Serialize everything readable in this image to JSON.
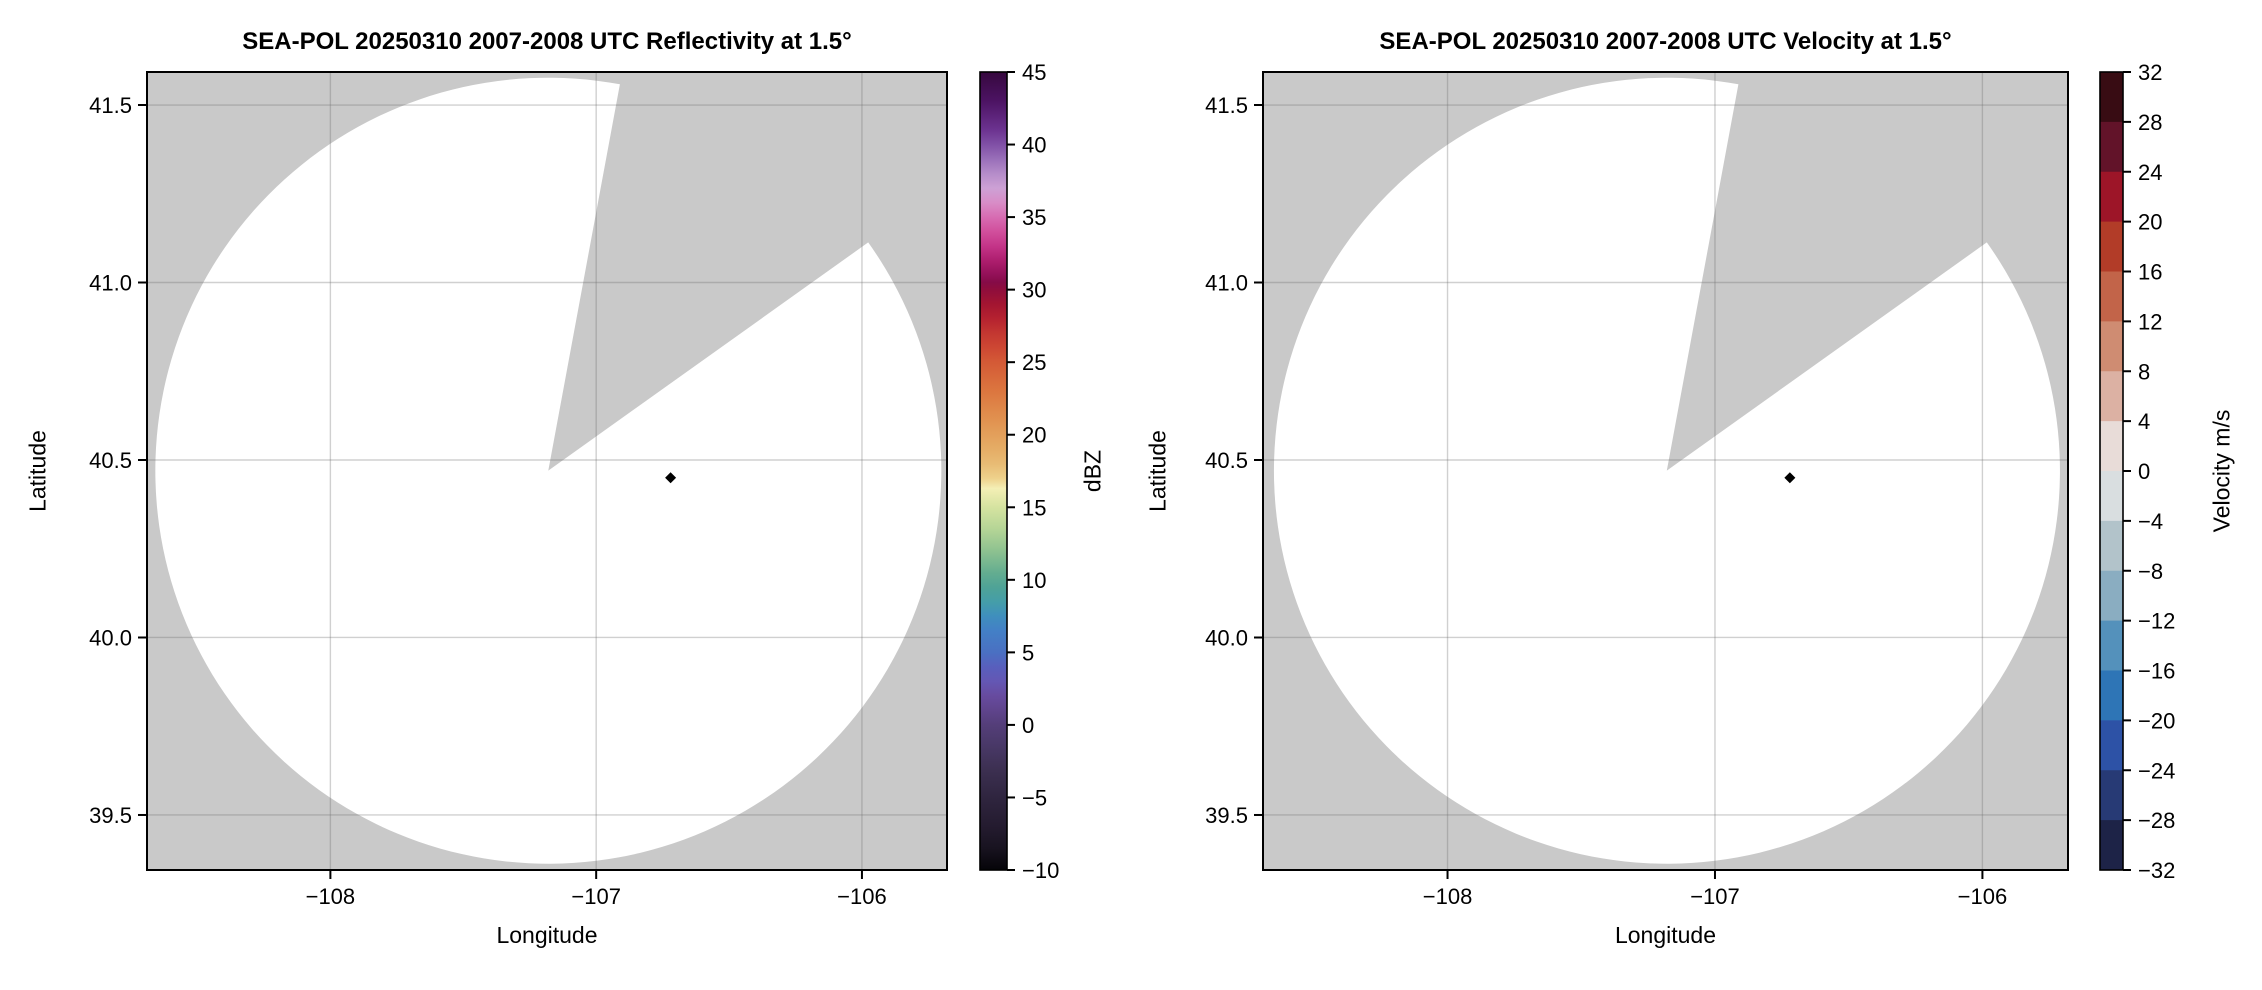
{
  "figure": {
    "background": "#ffffff"
  },
  "colors": {
    "no_data_gray": "#c9c9c9",
    "scanned_area_white": "#ffffff",
    "grid_line": "rgba(110,110,110,0.32)",
    "axes_frame": "#000000",
    "marker_black": "#000000"
  },
  "chart_data": [
    {
      "type": "radar-ppi",
      "title": "SEA-POL 20250310 2007-2008 UTC Reflectivity at 1.5°",
      "xlabel": "Longitude",
      "ylabel": "Latitude",
      "xlim": [
        -108.69,
        -105.68
      ],
      "ylim": [
        39.345,
        41.593
      ],
      "grid": true,
      "xticks": [
        {
          "v": -108,
          "label": "−108"
        },
        {
          "v": -107,
          "label": "−107"
        },
        {
          "v": -106,
          "label": "−106"
        }
      ],
      "yticks": [
        {
          "v": 41.5,
          "label": "41.5"
        },
        {
          "v": 41.0,
          "label": "41.0"
        },
        {
          "v": 40.5,
          "label": "40.5"
        },
        {
          "v": 40.0,
          "label": "40.0"
        },
        {
          "v": 39.5,
          "label": "39.5"
        }
      ],
      "radar_center": {
        "lon": -107.18,
        "lat": 40.47
      },
      "scan_radius_deg_lat": 1.107,
      "missing_sector_azimuth_deg": {
        "from": 10.5,
        "to": 54.5
      },
      "marker": {
        "lon": -106.72,
        "lat": 40.45,
        "shape": "diamond",
        "color": "#000000"
      },
      "colorbar": {
        "label": "dBZ",
        "style": "continuous",
        "min": -10,
        "max": 45,
        "ticks": [
          {
            "v": 45,
            "label": "45"
          },
          {
            "v": 40,
            "label": "40"
          },
          {
            "v": 35,
            "label": "35"
          },
          {
            "v": 30,
            "label": "30"
          },
          {
            "v": 25,
            "label": "25"
          },
          {
            "v": 20,
            "label": "20"
          },
          {
            "v": 15,
            "label": "15"
          },
          {
            "v": 10,
            "label": "10"
          },
          {
            "v": 5,
            "label": "5"
          },
          {
            "v": 0,
            "label": "0"
          },
          {
            "v": -5,
            "label": "−5"
          },
          {
            "v": -10,
            "label": "−10"
          }
        ],
        "gradient_stops": [
          {
            "v": 45,
            "color": "#36083e"
          },
          {
            "v": 43,
            "color": "#4c1363"
          },
          {
            "v": 41,
            "color": "#6c3390"
          },
          {
            "v": 40,
            "color": "#8050a6"
          },
          {
            "v": 39,
            "color": "#996fb9"
          },
          {
            "v": 38,
            "color": "#b58cc9"
          },
          {
            "v": 37,
            "color": "#cda1d5"
          },
          {
            "v": 36,
            "color": "#d88dc7"
          },
          {
            "v": 35,
            "color": "#d76cb2"
          },
          {
            "v": 34,
            "color": "#d14f9c"
          },
          {
            "v": 33,
            "color": "#c43488"
          },
          {
            "v": 32,
            "color": "#ad1e6e"
          },
          {
            "v": 31,
            "color": "#921057"
          },
          {
            "v": 30.5,
            "color": "#850b47"
          },
          {
            "v": 30,
            "color": "#8f0d3c"
          },
          {
            "v": 29,
            "color": "#a31531"
          },
          {
            "v": 28,
            "color": "#b52230"
          },
          {
            "v": 27,
            "color": "#c33731"
          },
          {
            "v": 26,
            "color": "#cd4733"
          },
          {
            "v": 25,
            "color": "#d45a36"
          },
          {
            "v": 23,
            "color": "#dc763f"
          },
          {
            "v": 21,
            "color": "#e19250"
          },
          {
            "v": 19,
            "color": "#e5ad66"
          },
          {
            "v": 18,
            "color": "#e8bb74"
          },
          {
            "v": 17,
            "color": "#eed18b"
          },
          {
            "v": 16.3,
            "color": "#f4efb5"
          },
          {
            "v": 15,
            "color": "#d5e3a0"
          },
          {
            "v": 13.5,
            "color": "#b5d596"
          },
          {
            "v": 12,
            "color": "#8ec290"
          },
          {
            "v": 10.5,
            "color": "#64ad90"
          },
          {
            "v": 9.5,
            "color": "#4fa396"
          },
          {
            "v": 8.5,
            "color": "#459ea8"
          },
          {
            "v": 7.5,
            "color": "#3f8fbd"
          },
          {
            "v": 6.5,
            "color": "#4380c6"
          },
          {
            "v": 5,
            "color": "#4a70c2"
          },
          {
            "v": 4,
            "color": "#585fbd"
          },
          {
            "v": 3,
            "color": "#6457b4"
          },
          {
            "v": 2,
            "color": "#674b9f"
          },
          {
            "v": 1,
            "color": "#5f448c"
          },
          {
            "v": 0,
            "color": "#543e79"
          },
          {
            "v": -1.5,
            "color": "#483866"
          },
          {
            "v": -3,
            "color": "#3d3052"
          },
          {
            "v": -5,
            "color": "#2f253f"
          },
          {
            "v": -7,
            "color": "#241b2f"
          },
          {
            "v": -8.5,
            "color": "#181320"
          },
          {
            "v": -10,
            "color": "#050408"
          }
        ]
      }
    },
    {
      "type": "radar-ppi",
      "title": "SEA-POL 20250310 2007-2008 UTC Velocity at 1.5°",
      "xlabel": "Longitude",
      "ylabel": "Latitude",
      "xlim": [
        -108.69,
        -105.68
      ],
      "ylim": [
        39.345,
        41.593
      ],
      "grid": true,
      "xticks": [
        {
          "v": -108,
          "label": "−108"
        },
        {
          "v": -107,
          "label": "−107"
        },
        {
          "v": -106,
          "label": "−106"
        }
      ],
      "yticks": [
        {
          "v": 41.5,
          "label": "41.5"
        },
        {
          "v": 41.0,
          "label": "41.0"
        },
        {
          "v": 40.5,
          "label": "40.5"
        },
        {
          "v": 40.0,
          "label": "40.0"
        },
        {
          "v": 39.5,
          "label": "39.5"
        }
      ],
      "radar_center": {
        "lon": -107.18,
        "lat": 40.47
      },
      "scan_radius_deg_lat": 1.107,
      "missing_sector_azimuth_deg": {
        "from": 10.5,
        "to": 54.5
      },
      "marker": {
        "lon": -106.72,
        "lat": 40.45,
        "shape": "diamond",
        "color": "#000000"
      },
      "colorbar": {
        "label": "Velocity m/s",
        "style": "discrete",
        "min": -32,
        "max": 32,
        "ticks": [
          {
            "v": 32,
            "label": "32"
          },
          {
            "v": 28,
            "label": "28"
          },
          {
            "v": 24,
            "label": "24"
          },
          {
            "v": 20,
            "label": "20"
          },
          {
            "v": 16,
            "label": "16"
          },
          {
            "v": 12,
            "label": "12"
          },
          {
            "v": 8,
            "label": "8"
          },
          {
            "v": 4,
            "label": "4"
          },
          {
            "v": 0,
            "label": "0"
          },
          {
            "v": -4,
            "label": "−4"
          },
          {
            "v": -8,
            "label": "−8"
          },
          {
            "v": -12,
            "label": "−12"
          },
          {
            "v": -16,
            "label": "−16"
          },
          {
            "v": -20,
            "label": "−20"
          },
          {
            "v": -24,
            "label": "−24"
          },
          {
            "v": -28,
            "label": "−28"
          },
          {
            "v": -32,
            "label": "−32"
          }
        ],
        "bands": [
          {
            "from": 28,
            "to": 32,
            "color": "#380c13"
          },
          {
            "from": 24,
            "to": 28,
            "color": "#621329"
          },
          {
            "from": 20,
            "to": 24,
            "color": "#9d1528"
          },
          {
            "from": 16,
            "to": 20,
            "color": "#b23c28"
          },
          {
            "from": 12,
            "to": 16,
            "color": "#c26449"
          },
          {
            "from": 8,
            "to": 12,
            "color": "#cf8c72"
          },
          {
            "from": 4,
            "to": 8,
            "color": "#dcb1a3"
          },
          {
            "from": 0,
            "to": 4,
            "color": "#e8dcd8"
          },
          {
            "from": -4,
            "to": 0,
            "color": "#d9dee0"
          },
          {
            "from": -8,
            "to": -4,
            "color": "#b2c3ca"
          },
          {
            "from": -12,
            "to": -8,
            "color": "#8aadc1"
          },
          {
            "from": -16,
            "to": -12,
            "color": "#5491bb"
          },
          {
            "from": -20,
            "to": -16,
            "color": "#2e75b6"
          },
          {
            "from": -24,
            "to": -20,
            "color": "#2d52a6"
          },
          {
            "from": -28,
            "to": -24,
            "color": "#273a75"
          },
          {
            "from": -32,
            "to": -28,
            "color": "#1d2347"
          }
        ]
      }
    }
  ]
}
